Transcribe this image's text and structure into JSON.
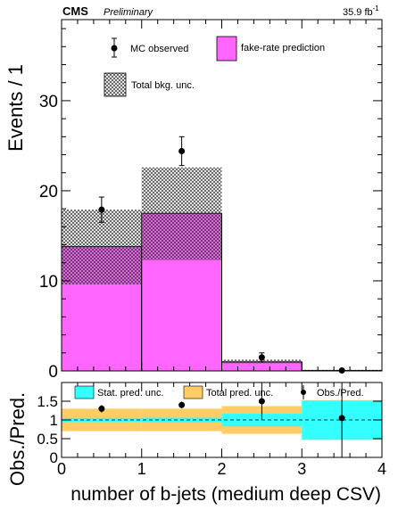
{
  "header": {
    "experiment": "CMS",
    "status": "Preliminary",
    "luminosity": "35.9 fb",
    "lumi_unit_sup": "-1"
  },
  "legend": {
    "observed": "MC observed",
    "prediction": "fake-rate prediction",
    "bkg_unc": "Total bkg. unc."
  },
  "ratio_legend": {
    "stat": "Stat. pred. unc.",
    "total": "Total pred. unc.",
    "obs": "Obs./Pred."
  },
  "colors": {
    "prediction": "#ff66ff",
    "stat_band": "#33ffff",
    "total_band": "#ffcc66",
    "hatch": "#333333"
  },
  "chart_data": [
    {
      "type": "bar",
      "xlabel": "number of b-jets (medium deep CSV)",
      "ylabel": "Events / 1",
      "xlim": [
        0,
        4
      ],
      "ylim": [
        0,
        39
      ],
      "x_ticks": [
        "0",
        "1",
        "2",
        "3",
        "4"
      ],
      "y_ticks": [
        "0",
        "10",
        "20",
        "30"
      ],
      "bins": [
        [
          0,
          1
        ],
        [
          1,
          2
        ],
        [
          2,
          3
        ],
        [
          3,
          4
        ]
      ],
      "series": [
        {
          "name": "fake-rate prediction",
          "values": [
            13.8,
            17.5,
            1.0,
            0.05
          ]
        },
        {
          "name": "Total bkg. unc.",
          "band_low": [
            9.6,
            12.3,
            0.85,
            0.0
          ],
          "band_high": [
            17.9,
            22.6,
            1.25,
            0.12
          ]
        },
        {
          "name": "MC observed",
          "x": [
            0.5,
            1.5,
            2.5,
            3.5
          ],
          "values": [
            17.9,
            24.4,
            1.5,
            0.05
          ],
          "err": [
            1.4,
            1.6,
            0.5,
            0.1
          ]
        }
      ]
    },
    {
      "type": "bar",
      "ylabel": "Obs./Pred.",
      "xlabel": "number of b-jets (medium deep CSV)",
      "xlim": [
        0,
        4
      ],
      "ylim": [
        0,
        2
      ],
      "y_ticks": [
        "0",
        "0.5",
        "1",
        "1.5"
      ],
      "reference_line": 1,
      "series": [
        {
          "name": "Total pred. unc.",
          "low": [
            0.7,
            0.7,
            0.63,
            0.47
          ],
          "high": [
            1.3,
            1.3,
            1.37,
            1.53
          ]
        },
        {
          "name": "Stat. pred. unc.",
          "low": [
            0.95,
            0.94,
            0.83,
            0.48
          ],
          "high": [
            1.05,
            1.06,
            1.17,
            1.52
          ]
        },
        {
          "name": "Obs./Pred.",
          "x": [
            0.5,
            1.5,
            2.5,
            3.5
          ],
          "values": [
            1.3,
            1.4,
            1.5,
            1.05
          ],
          "err": [
            0.1,
            0.09,
            0.5,
            2.0
          ]
        }
      ]
    }
  ]
}
